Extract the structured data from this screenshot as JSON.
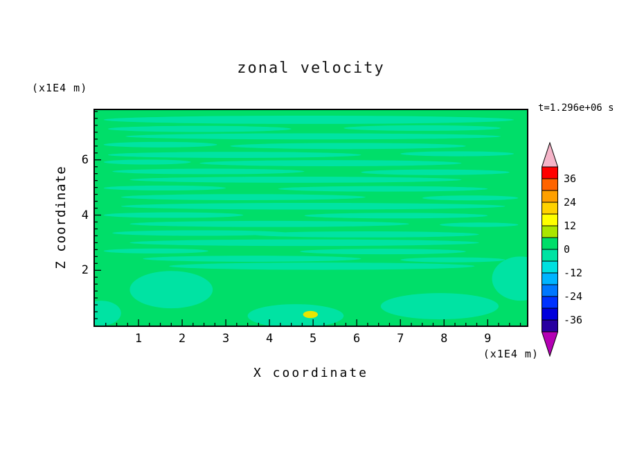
{
  "chart_data": {
    "type": "heatmap",
    "subtype": "filled-contour",
    "title": "zonal velocity",
    "xlabel": "X coordinate",
    "ylabel": "Z coordinate",
    "x_unit": "(x1E4 m)",
    "y_unit": "(x1E4 m)",
    "timestamp": "t=1.296e+06 s",
    "xlim": [
      0,
      9.9
    ],
    "ylim": [
      0,
      7.8
    ],
    "x_ticks": [
      1,
      2,
      3,
      4,
      5,
      6,
      7,
      8,
      9
    ],
    "y_ticks": [
      2,
      4,
      6
    ],
    "grid": false,
    "legend_position": "right-colorbar",
    "colorbar": {
      "range": [
        -42,
        42
      ],
      "segment_step": 6,
      "tick_labels": [
        "36",
        "24",
        "12",
        "0",
        "-12",
        "-24",
        "-36"
      ],
      "segment_colors": [
        "#FF0000",
        "#FF6400",
        "#FFA000",
        "#FFD200",
        "#FFFF00",
        "#AAE600",
        "#00DE69",
        "#00E3A3",
        "#00E0E0",
        "#00B4FF",
        "#0078FF",
        "#0032FF",
        "#0000DC",
        "#2800A0"
      ],
      "over_color": "#F5B4C8",
      "under_color": "#B400B4"
    },
    "field": {
      "description": "velocity field dominated by values in the 0..6 band (base green) with thin horizontal streaks in the -6..0 band (light green) and one small yellow 12..18 spot near x=4.9, z=0.4",
      "base_color": "#00DE69",
      "streak_color": "#00E3A3",
      "spot_color": "#E8E600",
      "streaks": [
        [
          4.9,
          7.45,
          9.4,
          0.3
        ],
        [
          2.4,
          7.12,
          4.2,
          0.22
        ],
        [
          7.5,
          7.15,
          3.6,
          0.2
        ],
        [
          5.0,
          6.85,
          8.6,
          0.22
        ],
        [
          1.5,
          6.55,
          2.6,
          0.2
        ],
        [
          5.8,
          6.5,
          5.4,
          0.22
        ],
        [
          3.2,
          6.18,
          5.8,
          0.22
        ],
        [
          8.3,
          6.22,
          2.6,
          0.18
        ],
        [
          1.2,
          5.92,
          2.0,
          0.18
        ],
        [
          5.4,
          5.88,
          6.0,
          0.22
        ],
        [
          2.6,
          5.58,
          4.4,
          0.2
        ],
        [
          7.8,
          5.55,
          3.4,
          0.2
        ],
        [
          4.6,
          5.28,
          7.6,
          0.22
        ],
        [
          1.6,
          4.98,
          2.8,
          0.18
        ],
        [
          6.6,
          4.95,
          4.8,
          0.2
        ],
        [
          3.4,
          4.65,
          5.6,
          0.22
        ],
        [
          8.6,
          4.62,
          2.2,
          0.18
        ],
        [
          5.0,
          4.32,
          8.8,
          0.24
        ],
        [
          1.8,
          4.0,
          3.2,
          0.2
        ],
        [
          6.9,
          3.98,
          4.2,
          0.2
        ],
        [
          4.0,
          3.68,
          6.4,
          0.22
        ],
        [
          8.8,
          3.65,
          1.8,
          0.16
        ],
        [
          2.4,
          3.35,
          4.0,
          0.2
        ],
        [
          6.2,
          3.3,
          5.2,
          0.22
        ],
        [
          4.8,
          3.0,
          8.0,
          0.24
        ],
        [
          1.4,
          2.7,
          2.4,
          0.18
        ],
        [
          6.6,
          2.68,
          3.8,
          0.2
        ],
        [
          3.6,
          2.42,
          5.0,
          0.22
        ],
        [
          8.2,
          2.38,
          2.4,
          0.18
        ],
        [
          5.2,
          2.15,
          7.0,
          0.26
        ]
      ],
      "blobs": [
        [
          1.75,
          1.3,
          1.9,
          1.35
        ],
        [
          4.6,
          0.35,
          2.2,
          0.85
        ],
        [
          7.9,
          0.7,
          2.7,
          0.95
        ],
        [
          9.75,
          1.7,
          1.3,
          1.6
        ],
        [
          0.15,
          0.45,
          0.9,
          0.9
        ]
      ],
      "spots": [
        [
          4.94,
          0.4,
          0.34,
          0.26
        ]
      ]
    }
  }
}
